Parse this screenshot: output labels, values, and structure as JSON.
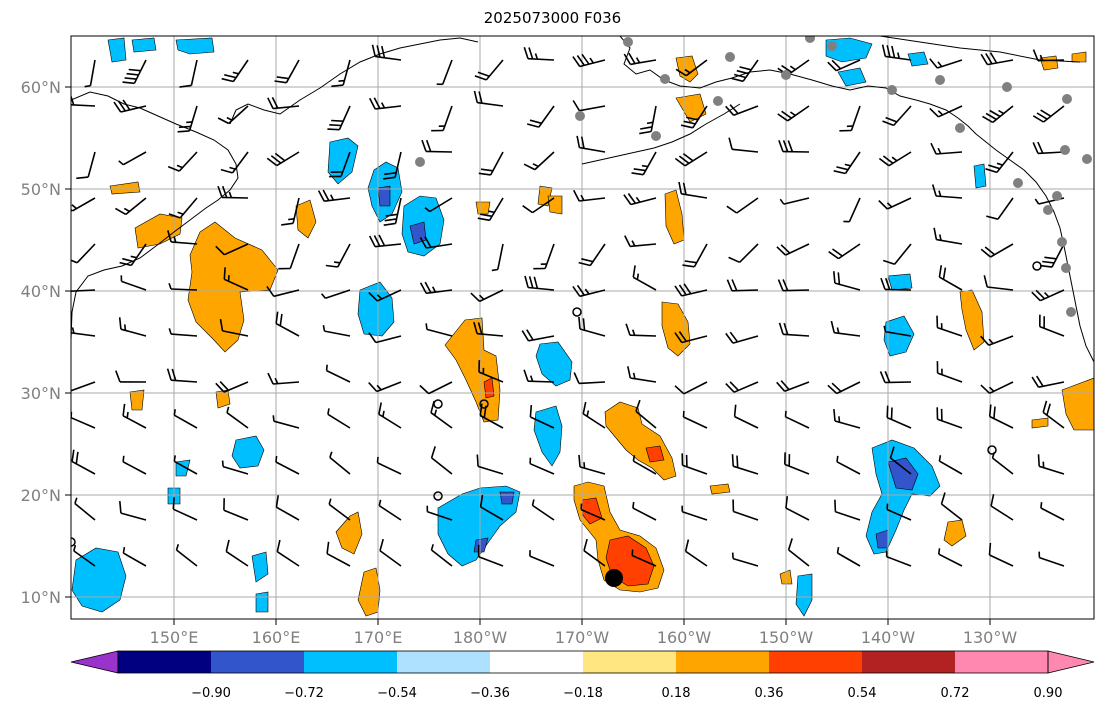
{
  "title": "2025073000 F036",
  "axes": {
    "longitude_ticks": [
      "150°E",
      "160°E",
      "170°E",
      "180°W",
      "170°W",
      "160°W",
      "150°W",
      "140°W",
      "130°W"
    ],
    "latitude_ticks": [
      "60°N",
      "50°N",
      "40°N",
      "30°N",
      "20°N",
      "10°N"
    ],
    "grid": true
  },
  "colorbar": {
    "tick_labels": [
      "−0.90",
      "−0.72",
      "−0.54",
      "−0.36",
      "−0.18",
      "0.18",
      "0.36",
      "0.54",
      "0.72",
      "0.90"
    ],
    "colors": [
      "#9933cc",
      "#000080",
      "#3355cc",
      "#00bfff",
      "#aee0ff",
      "#ffffff",
      "#ffe680",
      "#ffa500",
      "#ff4000",
      "#b22222",
      "#ff88b0",
      "#ff88b0"
    ],
    "extend": "both"
  },
  "colors": {
    "positive_light": "#ffa500",
    "positive_strong": "#ff4000",
    "negative_light": "#00bfff",
    "negative_strong": "#3355cc",
    "coast": "#000000",
    "grid": "#aaaaaa",
    "station": "#808080"
  }
}
